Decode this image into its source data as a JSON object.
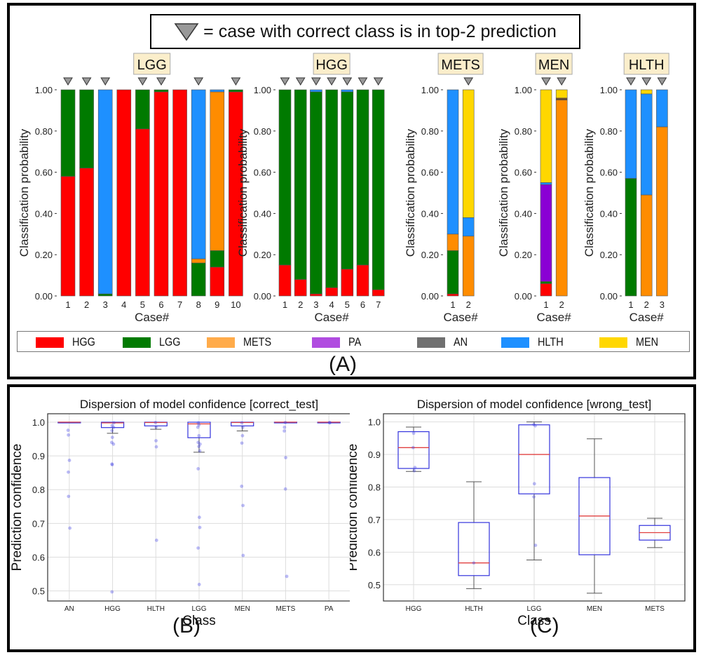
{
  "panelA": {
    "key_text": "= case with correct class is in top-2 prediction",
    "label": "(A)",
    "legend": [
      {
        "name": "HGG",
        "color": "#ff0000"
      },
      {
        "name": "LGG",
        "color": "#007a00"
      },
      {
        "name": "METS",
        "color": "#ffab4a"
      },
      {
        "name": "PA",
        "color": "#b04ce0"
      },
      {
        "name": "AN",
        "color": "#707070"
      },
      {
        "name": "HLTH",
        "color": "#1e90ff"
      },
      {
        "name": "MEN",
        "color": "#ffd700"
      }
    ]
  },
  "panelB": {
    "label": "(B)"
  },
  "panelC": {
    "label": "(C)"
  },
  "chart_data": [
    {
      "type": "bar",
      "stacked": true,
      "group": "LGG",
      "title": "LGG",
      "xlabel": "Case#",
      "ylabel": "Classification probability",
      "ylim": [
        0,
        1
      ],
      "yticks": [
        "0.00",
        "0.20",
        "0.40",
        "0.60",
        "0.80",
        "1.00"
      ],
      "categories": [
        "1",
        "2",
        "3",
        "4",
        "5",
        "6",
        "7",
        "8",
        "9",
        "10"
      ],
      "top2_marker": [
        true,
        true,
        true,
        false,
        true,
        true,
        false,
        true,
        false,
        true
      ],
      "series": [
        {
          "name": "HGG",
          "values": [
            0.58,
            0.62,
            0.0,
            1.0,
            0.81,
            0.99,
            1.0,
            0.0,
            0.14,
            0.99
          ]
        },
        {
          "name": "LGG",
          "values": [
            0.42,
            0.38,
            0.01,
            0.0,
            0.19,
            0.01,
            0.0,
            0.16,
            0.08,
            0.01
          ]
        },
        {
          "name": "METS",
          "values": [
            0.0,
            0.0,
            0.0,
            0.0,
            0.0,
            0.0,
            0.0,
            0.02,
            0.77,
            0.0
          ]
        },
        {
          "name": "PA",
          "values": [
            0,
            0,
            0,
            0,
            0,
            0,
            0,
            0,
            0,
            0
          ]
        },
        {
          "name": "AN",
          "values": [
            0,
            0,
            0,
            0,
            0,
            0,
            0,
            0,
            0,
            0
          ]
        },
        {
          "name": "HLTH",
          "values": [
            0.0,
            0.0,
            0.99,
            0.0,
            0.0,
            0.0,
            0.0,
            0.82,
            0.01,
            0.0
          ]
        },
        {
          "name": "MEN",
          "values": [
            0,
            0,
            0,
            0,
            0,
            0,
            0,
            0,
            0,
            0
          ]
        }
      ]
    },
    {
      "type": "bar",
      "stacked": true,
      "group": "HGG",
      "title": "HGG",
      "xlabel": "Case#",
      "ylabel": "Classification probability",
      "ylim": [
        0,
        1
      ],
      "yticks": [
        "0.00",
        "0.20",
        "0.40",
        "0.60",
        "0.80",
        "1.00"
      ],
      "categories": [
        "1",
        "2",
        "3",
        "4",
        "5",
        "6",
        "7"
      ],
      "top2_marker": [
        true,
        true,
        true,
        true,
        true,
        true,
        true
      ],
      "series": [
        {
          "name": "HGG",
          "values": [
            0.15,
            0.08,
            0.01,
            0.04,
            0.13,
            0.15,
            0.03
          ]
        },
        {
          "name": "LGG",
          "values": [
            0.85,
            0.92,
            0.98,
            0.96,
            0.86,
            0.85,
            0.97
          ]
        },
        {
          "name": "METS",
          "values": [
            0,
            0,
            0,
            0,
            0,
            0,
            0
          ]
        },
        {
          "name": "PA",
          "values": [
            0,
            0,
            0,
            0,
            0,
            0,
            0
          ]
        },
        {
          "name": "AN",
          "values": [
            0,
            0,
            0,
            0,
            0,
            0,
            0
          ]
        },
        {
          "name": "HLTH",
          "values": [
            0.0,
            0.0,
            0.01,
            0.0,
            0.01,
            0.0,
            0.0
          ]
        },
        {
          "name": "MEN",
          "values": [
            0,
            0,
            0,
            0,
            0,
            0,
            0
          ]
        }
      ]
    },
    {
      "type": "bar",
      "stacked": true,
      "group": "METS",
      "title": "METS",
      "xlabel": "Case#",
      "ylabel": "Classification probability",
      "ylim": [
        0,
        1
      ],
      "yticks": [
        "0.00",
        "0.20",
        "0.40",
        "0.60",
        "0.80",
        "1.00"
      ],
      "categories": [
        "1",
        "2"
      ],
      "top2_marker": [
        false,
        true
      ],
      "series": [
        {
          "name": "HGG",
          "values": [
            0.01,
            0.0
          ]
        },
        {
          "name": "LGG",
          "values": [
            0.21,
            0.0
          ]
        },
        {
          "name": "METS",
          "values": [
            0.08,
            0.29
          ]
        },
        {
          "name": "PA",
          "values": [
            0,
            0
          ]
        },
        {
          "name": "AN",
          "values": [
            0,
            0
          ]
        },
        {
          "name": "HLTH",
          "values": [
            0.7,
            0.09
          ]
        },
        {
          "name": "MEN",
          "values": [
            0.0,
            0.62
          ]
        }
      ]
    },
    {
      "type": "bar",
      "stacked": true,
      "group": "MEN",
      "title": "MEN",
      "xlabel": "Case#",
      "ylabel": "Classification probability",
      "ylim": [
        0,
        1
      ],
      "yticks": [
        "0.00",
        "0.20",
        "0.40",
        "0.60",
        "0.80",
        "1.00"
      ],
      "categories": [
        "1",
        "2"
      ],
      "top2_marker": [
        true,
        true
      ],
      "series": [
        {
          "name": "HGG",
          "values": [
            0.06,
            0.0
          ]
        },
        {
          "name": "LGG",
          "values": [
            0.01,
            0.0
          ]
        },
        {
          "name": "METS",
          "values": [
            0.0,
            0.95
          ]
        },
        {
          "name": "PA",
          "values": [
            0.47,
            0.0
          ]
        },
        {
          "name": "AN",
          "values": [
            0.0,
            0.01
          ]
        },
        {
          "name": "HLTH",
          "values": [
            0.01,
            0.0
          ]
        },
        {
          "name": "MEN",
          "values": [
            0.45,
            0.04
          ]
        }
      ]
    },
    {
      "type": "bar",
      "stacked": true,
      "group": "HLTH",
      "title": "HLTH",
      "xlabel": "Case#",
      "ylabel": "Classification probability",
      "ylim": [
        0,
        1
      ],
      "yticks": [
        "0.00",
        "0.20",
        "0.40",
        "0.60",
        "0.80",
        "1.00"
      ],
      "categories": [
        "1",
        "2",
        "3"
      ],
      "top2_marker": [
        true,
        true,
        true
      ],
      "series": [
        {
          "name": "HGG",
          "values": [
            0,
            0,
            0
          ]
        },
        {
          "name": "LGG",
          "values": [
            0.57,
            0.0,
            0.0
          ]
        },
        {
          "name": "METS",
          "values": [
            0.0,
            0.49,
            0.82
          ]
        },
        {
          "name": "PA",
          "values": [
            0,
            0,
            0
          ]
        },
        {
          "name": "AN",
          "values": [
            0,
            0,
            0
          ]
        },
        {
          "name": "HLTH",
          "values": [
            0.43,
            0.49,
            0.18
          ]
        },
        {
          "name": "MEN",
          "values": [
            0.0,
            0.02,
            0.0
          ]
        }
      ]
    },
    {
      "type": "box",
      "title": "Dispersion of model confidence [correct_test]",
      "xlabel": "Class",
      "ylabel": "Prediction confidence",
      "ylim": [
        0.47,
        1.025
      ],
      "yticks": [
        "0.5",
        "0.6",
        "0.7",
        "0.8",
        "0.9",
        "1.0"
      ],
      "grid": true,
      "categories": [
        "AN",
        "HGG",
        "HLTH",
        "LGG",
        "MEN",
        "METS",
        "PA"
      ],
      "boxes": [
        {
          "q1": 0.999,
          "median": 1.0,
          "q3": 1.0,
          "whislo": 0.999,
          "whishi": 1.0,
          "points": [
            0.976,
            0.962,
            0.887,
            0.852,
            0.78,
            0.686
          ]
        },
        {
          "q1": 0.984,
          "median": 0.998,
          "q3": 1.0,
          "whislo": 0.967,
          "whishi": 1.0,
          "points": [
            0.998,
            0.99,
            0.985,
            0.975,
            0.955,
            0.94,
            0.935,
            0.876,
            0.874,
            0.497
          ]
        },
        {
          "q1": 0.989,
          "median": 0.999,
          "q3": 1.0,
          "whislo": 0.979,
          "whishi": 1.0,
          "points": [
            0.999,
            0.985,
            0.945,
            0.927,
            0.65
          ]
        },
        {
          "q1": 0.954,
          "median": 0.995,
          "q3": 1.0,
          "whislo": 0.911,
          "whishi": 1.0,
          "points": [
            0.998,
            0.992,
            0.985,
            0.96,
            0.94,
            0.935,
            0.928,
            0.915,
            0.862,
            0.718,
            0.688,
            0.627,
            0.519
          ]
        },
        {
          "q1": 0.989,
          "median": 0.999,
          "q3": 1.0,
          "whislo": 0.974,
          "whishi": 1.0,
          "points": [
            0.998,
            0.985,
            0.96,
            0.938,
            0.81,
            0.753,
            0.605
          ]
        },
        {
          "q1": 0.999,
          "median": 1.0,
          "q3": 1.0,
          "whislo": 0.999,
          "whishi": 1.0,
          "points": [
            0.999,
            0.985,
            0.974,
            0.895,
            0.802,
            0.543
          ]
        },
        {
          "q1": 0.999,
          "median": 1.0,
          "q3": 1.0,
          "whislo": 0.999,
          "whishi": 1.0,
          "points": [
            0.999,
            0.998
          ]
        }
      ]
    },
    {
      "type": "box",
      "title": "Dispersion of model confidence [wrong_test]",
      "xlabel": "Class",
      "ylabel": "Prediction confidence",
      "ylim": [
        0.45,
        1.025
      ],
      "yticks": [
        "0.5",
        "0.6",
        "0.7",
        "0.8",
        "0.9",
        "1.0"
      ],
      "grid": true,
      "categories": [
        "HGG",
        "HLTH",
        "LGG",
        "MEN",
        "METS"
      ],
      "boxes": [
        {
          "q1": 0.857,
          "median": 0.921,
          "q3": 0.97,
          "whislo": 0.848,
          "whishi": 0.984,
          "points": [
            0.965,
            0.921,
            0.86,
            0.85
          ]
        },
        {
          "q1": 0.528,
          "median": 0.567,
          "q3": 0.691,
          "whislo": 0.488,
          "whishi": 0.816,
          "points": [
            0.567
          ]
        },
        {
          "q1": 0.779,
          "median": 0.9,
          "q3": 0.991,
          "whislo": 0.576,
          "whishi": 1.0,
          "points": [
            0.992,
            0.988,
            0.81,
            0.77,
            0.621
          ]
        },
        {
          "q1": 0.592,
          "median": 0.711,
          "q3": 0.829,
          "whislo": 0.474,
          "whishi": 0.948,
          "points": []
        },
        {
          "q1": 0.637,
          "median": 0.66,
          "q3": 0.682,
          "whislo": 0.614,
          "whishi": 0.704,
          "points": []
        }
      ]
    }
  ]
}
